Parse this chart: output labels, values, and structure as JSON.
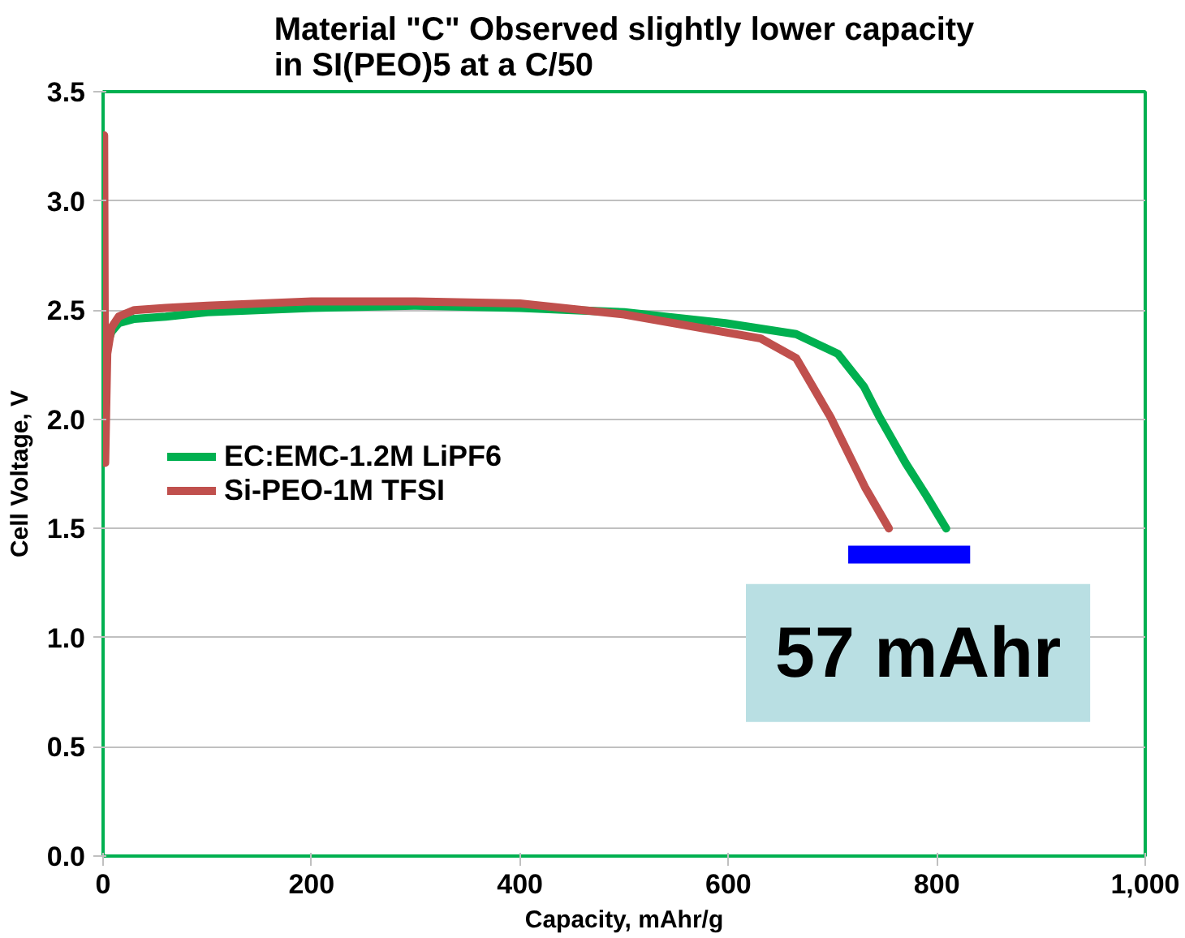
{
  "chart_data": {
    "type": "line",
    "title": "Material \"C\" Observed slightly lower capacity\nin SI(PEO)5 at a C/50",
    "xlabel": "Capacity, mAhr/g",
    "ylabel": "Cell Voltage, V",
    "xlim": [
      0,
      1000
    ],
    "xticks": [
      0,
      200,
      400,
      600,
      {
        "value": 800,
        "label": "800"
      },
      {
        "value": 1000,
        "label": "1,000"
      }
    ],
    "ylim": [
      0,
      3.5
    ],
    "yticks": [
      {
        "value": 0,
        "label": "0.0"
      },
      0.5,
      {
        "value": 1,
        "label": "1.0"
      },
      1.5,
      {
        "value": 2,
        "label": "2.0"
      },
      2.5,
      {
        "value": 3,
        "label": "3.0"
      },
      3.5
    ],
    "grid": "y",
    "legend": "left",
    "line_style": "solid",
    "series": [
      {
        "name": "EC:EMC-1.2M LiPF6",
        "color": "#00b050",
        "x": [
          0,
          3,
          8,
          15,
          30,
          60,
          100,
          200,
          300,
          400,
          500,
          597,
          665,
          705,
          730,
          745,
          770,
          790,
          809
        ],
        "values": [
          2.2,
          2.33,
          2.4,
          2.44,
          2.46,
          2.47,
          2.49,
          2.51,
          2.52,
          2.51,
          2.49,
          2.44,
          2.39,
          2.3,
          2.15,
          2.01,
          1.8,
          1.65,
          1.5
        ]
      },
      {
        "name": "Si-PEO-1M TFSI",
        "color": "#c0504d",
        "x": [
          1,
          2,
          4,
          8,
          15,
          30,
          60,
          100,
          200,
          300,
          400,
          500,
          631,
          665,
          698,
          731,
          754
        ],
        "values": [
          3.3,
          1.8,
          2.3,
          2.42,
          2.47,
          2.5,
          2.51,
          2.52,
          2.54,
          2.54,
          2.53,
          2.48,
          2.37,
          2.28,
          2.01,
          1.69,
          1.5
        ]
      },
      {
        "color": "#0000ff",
        "x": [
          715,
          832
        ],
        "values": [
          1.38,
          1.38
        ]
      }
    ],
    "annotations": [
      "57 mAhr"
    ]
  }
}
